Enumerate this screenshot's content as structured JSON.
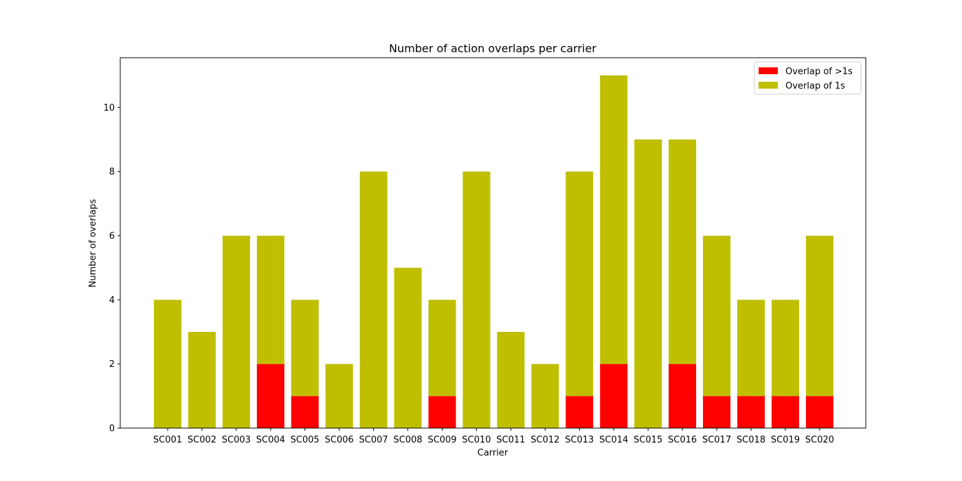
{
  "chart_data": {
    "type": "bar",
    "stacked": true,
    "title": "Number of action overlaps per carrier",
    "xlabel": "Carrier",
    "ylabel": "Number of overlaps",
    "ylim": [
      0,
      11.55
    ],
    "yticks": [
      0,
      2,
      4,
      6,
      8,
      10
    ],
    "grid": false,
    "legend_position": "top-right",
    "categories": [
      "SC001",
      "SC002",
      "SC003",
      "SC004",
      "SC005",
      "SC006",
      "SC007",
      "SC008",
      "SC009",
      "SC010",
      "SC011",
      "SC012",
      "SC013",
      "SC014",
      "SC015",
      "SC016",
      "SC017",
      "SC018",
      "SC019",
      "SC020"
    ],
    "series": [
      {
        "name": "Overlap of >1s",
        "color": "#ff0000",
        "values": [
          0,
          0,
          0,
          2,
          1,
          0,
          0,
          0,
          1,
          0,
          0,
          0,
          1,
          2,
          0,
          2,
          1,
          1,
          1,
          1
        ]
      },
      {
        "name": "Overlap of 1s",
        "color": "#bfbf00",
        "values": [
          4,
          3,
          6,
          4,
          3,
          2,
          8,
          5,
          3,
          8,
          3,
          2,
          7,
          9,
          9,
          7,
          5,
          3,
          3,
          5
        ]
      }
    ]
  }
}
